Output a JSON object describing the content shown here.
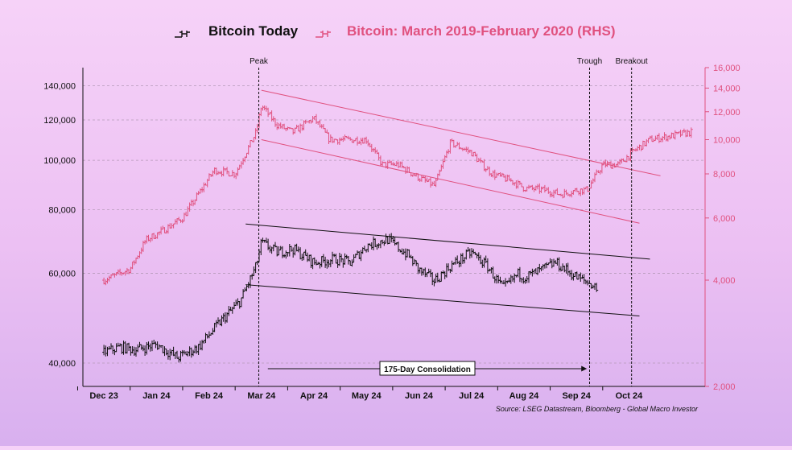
{
  "chart_data": {
    "type": "line",
    "style": "ohlc-bars",
    "legend": {
      "placement": "top-center",
      "series_a": "Bitcoin Today",
      "series_b": "Bitcoin: March 2019-February 2020 (RHS)"
    },
    "source": "Source: LSEG Datastream, Bloomberg - Global Macro Investor",
    "left_axis": {
      "scale": "log",
      "range": [
        36000,
        152000
      ],
      "ticks": [
        {
          "v": 40000,
          "label": "40,000"
        },
        {
          "v": 60000,
          "label": "60,000"
        },
        {
          "v": 80000,
          "label": "80,000"
        },
        {
          "v": 100000,
          "label": "100,000"
        },
        {
          "v": 120000,
          "label": "120,000"
        },
        {
          "v": 140000,
          "label": "140,000"
        }
      ]
    },
    "right_axis": {
      "scale": "log",
      "range": [
        2000,
        16000
      ],
      "color": "#e0517f",
      "ticks": [
        {
          "v": 2000,
          "label": "2,000"
        },
        {
          "v": 4000,
          "label": "4,000"
        },
        {
          "v": 6000,
          "label": "6,000"
        },
        {
          "v": 8000,
          "label": "8,000"
        },
        {
          "v": 10000,
          "label": "10,000"
        },
        {
          "v": 12000,
          "label": "12,000"
        },
        {
          "v": 14000,
          "label": "14,000"
        },
        {
          "v": 16000,
          "label": "16,000"
        }
      ]
    },
    "x_axis": {
      "labels": [
        "Dec 23",
        "Jan 24",
        "Feb 24",
        "Mar 24",
        "Apr 24",
        "May 24",
        "Jun 24",
        "Jul 24",
        "Aug 24",
        "Sep 24",
        "Oct 24"
      ]
    },
    "grid": true,
    "series": [
      {
        "name": "Bitcoin Today",
        "axis": "left",
        "color": "#111111",
        "x": [
          0,
          0.3,
          0.6,
          1.0,
          1.4,
          1.8,
          2.2,
          2.6,
          2.9,
          3.0,
          3.3,
          3.6,
          4.0,
          4.4,
          4.7,
          5.0,
          5.4,
          5.8,
          6.0,
          6.3,
          6.6,
          7.0,
          7.3,
          7.6,
          7.9,
          8.0,
          8.2,
          8.6,
          9.0,
          9.3,
          9.4
        ],
        "values": [
          42000,
          43000,
          42500,
          43500,
          41000,
          43000,
          48000,
          53000,
          62000,
          69000,
          66000,
          67000,
          63000,
          64000,
          63000,
          68000,
          70000,
          65000,
          61000,
          58000,
          62000,
          66000,
          62000,
          56000,
          60000,
          59000,
          60000,
          63000,
          59000,
          57000,
          56000
        ]
      },
      {
        "name": "Bitcoin: March 2019-February 2020 (RHS)",
        "axis": "right",
        "color": "#e0517f",
        "x": [
          0,
          0.5,
          0.8,
          1.1,
          1.5,
          2.1,
          2.5,
          2.9,
          3.0,
          3.3,
          3.6,
          4.0,
          4.3,
          4.6,
          5.0,
          5.3,
          5.6,
          6.0,
          6.3,
          6.6,
          7.0,
          7.2,
          7.4,
          7.8,
          8.0,
          8.4,
          8.7,
          9.0,
          9.2,
          9.5,
          9.8,
          10.1,
          10.4,
          11.2
        ],
        "values": [
          4000,
          4300,
          5200,
          5500,
          6000,
          8200,
          8000,
          10500,
          12500,
          11000,
          10500,
          11500,
          10000,
          10000,
          10000,
          8500,
          8500,
          7800,
          7400,
          9800,
          9200,
          8500,
          8000,
          7600,
          7300,
          7200,
          7000,
          7200,
          7200,
          8500,
          8500,
          9300,
          10000,
          10500
        ]
      }
    ],
    "annotations": {
      "peak": {
        "label": "Peak",
        "x": 2.95
      },
      "trough": {
        "label": "Trough",
        "x": 9.25
      },
      "breakout": {
        "label": "Breakout",
        "x": 10.05
      },
      "consolidation": {
        "label": "175-Day Consolidation",
        "x_from": 3.0,
        "x_to": 9.2
      }
    },
    "channels": [
      {
        "axis": "left",
        "color": "#111111",
        "from": {
          "x": 2.7,
          "v": 75000
        },
        "to": {
          "x": 10.4,
          "v": 64000
        }
      },
      {
        "axis": "left",
        "color": "#111111",
        "from": {
          "x": 2.7,
          "v": 57000
        },
        "to": {
          "x": 10.2,
          "v": 49500
        }
      },
      {
        "axis": "right",
        "color": "#e0517f",
        "from": {
          "x": 3.0,
          "v": 13800
        },
        "to": {
          "x": 10.6,
          "v": 7900
        }
      },
      {
        "axis": "right",
        "color": "#e0517f",
        "from": {
          "x": 3.0,
          "v": 10000
        },
        "to": {
          "x": 10.2,
          "v": 5800
        }
      }
    ]
  }
}
